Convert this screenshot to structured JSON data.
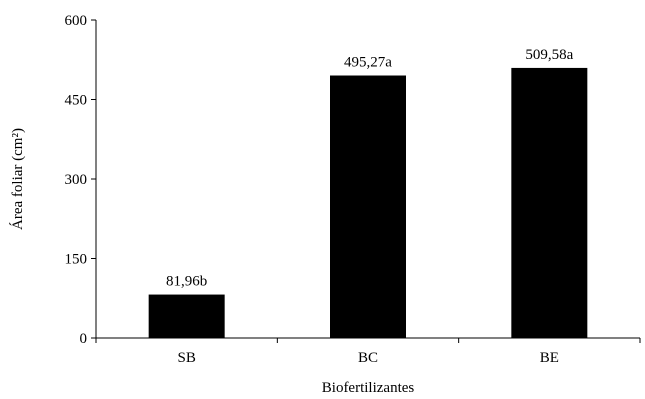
{
  "chart_data": {
    "type": "bar",
    "categories": [
      "SB",
      "BC",
      "BE"
    ],
    "values": [
      81.96,
      495.27,
      509.58
    ],
    "data_labels": [
      "81,96b",
      "495,27a",
      "509,58a"
    ],
    "xlabel": "Biofertilizantes",
    "ylabel": "Área foliar (cm²)",
    "ylim": [
      0,
      600
    ],
    "yticks": [
      0,
      150,
      300,
      450,
      600
    ],
    "ytick_labels": [
      "0",
      "150",
      "300",
      "450",
      "600"
    ],
    "grid": false,
    "legend": "none",
    "bar_color": "#000000"
  }
}
